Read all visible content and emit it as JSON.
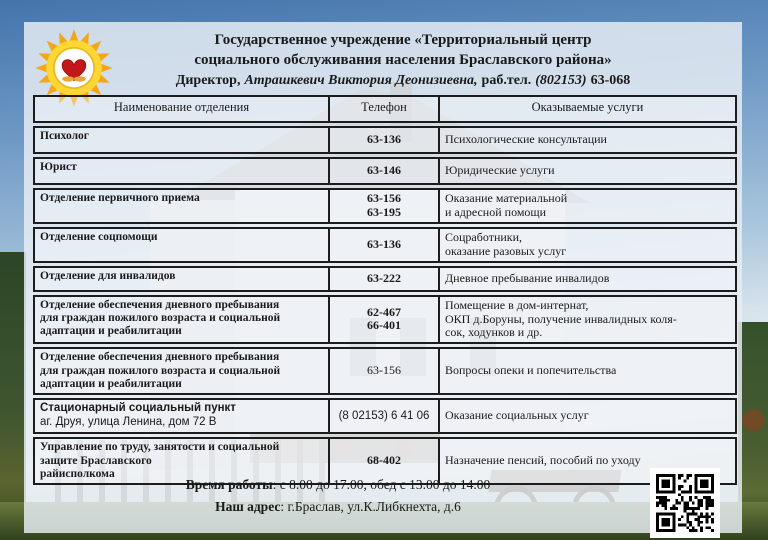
{
  "header": {
    "title_line1": "Государственное учреждение «Территориальный центр",
    "title_line2": "социального обслуживания населения Браславского района»",
    "director_label": "Директор,",
    "director_name": "Атрашкевич Виктория Деонизиевна,",
    "work_phone_label": "раб.тел.",
    "work_phone_code": "(802153)",
    "work_phone_number": "63-068",
    "logo_icon": "sun-heart-logo"
  },
  "table": {
    "columns": [
      "Наименование отделения",
      "Телефон",
      "Оказываемые услуги"
    ],
    "rows": [
      {
        "name_lines": [
          "Психолог"
        ],
        "name_sans": false,
        "phone_lines": [
          "63-136"
        ],
        "phone_bold": true,
        "service_lines": [
          "Психологические консультации"
        ]
      },
      {
        "name_lines": [
          "Юрист"
        ],
        "name_sans": false,
        "phone_lines": [
          "63-146"
        ],
        "phone_bold": true,
        "service_lines": [
          "Юридические услуги"
        ]
      },
      {
        "name_lines": [
          "Отделение первичного приема"
        ],
        "name_sans": false,
        "phone_lines": [
          "63-156",
          "63-195"
        ],
        "phone_bold": true,
        "service_lines": [
          "Оказание материальной",
          "и адресной помощи"
        ]
      },
      {
        "name_lines": [
          "Отделение соцпомощи"
        ],
        "name_sans": false,
        "phone_lines": [
          "63-136"
        ],
        "phone_bold": true,
        "service_lines": [
          "Соцработники,",
          "оказание разовых услуг"
        ]
      },
      {
        "name_lines": [
          "Отделение для инвалидов"
        ],
        "name_sans": false,
        "phone_lines": [
          "63-222"
        ],
        "phone_bold": true,
        "service_lines": [
          "Дневное пребывание инвалидов"
        ]
      },
      {
        "name_lines": [
          "Отделение обеспечения дневного пребывания",
          "для граждан пожилого возраста и социальной",
          "адаптации и реабилитации"
        ],
        "name_sans": false,
        "phone_lines": [
          "62-467",
          "66-401"
        ],
        "phone_bold": true,
        "service_lines": [
          "Помещение в дом-интернат,",
          "ОКП д.Боруны, получение инвалидных коля-",
          "сок, ходунков и др."
        ]
      },
      {
        "name_lines": [
          "Отделение обеспечения дневного пребывания",
          "для граждан пожилого возраста и социальной",
          "адаптации и реабилитации"
        ],
        "name_sans": false,
        "phone_lines": [
          "63-156"
        ],
        "phone_bold": false,
        "service_lines": [
          "Вопросы опеки и попечительства"
        ]
      },
      {
        "name_lines": [
          "Стационарный социальный пункт",
          "аг. Друя, улица Ленина, дом 72 В"
        ],
        "name_sans": true,
        "phone_lines": [
          "(8 02153) 6 41 06"
        ],
        "phone_bold": false,
        "service_lines": [
          "Оказание социальных услуг"
        ]
      },
      {
        "name_lines": [
          "Управление по труду, занятости и социальной",
          "защите Браславского",
          "райисполкома"
        ],
        "name_sans": false,
        "phone_lines": [
          "68-402"
        ],
        "phone_bold": true,
        "service_lines": [
          "Назначение пенсий, пособий по уходу"
        ]
      }
    ]
  },
  "footer": {
    "hours_label": "Время работы",
    "hours_value": ": с 8.00 до 17.00, обед с 13.00 до 14.00",
    "address_label": "Наш адрес",
    "address_value": ": г.Браслав, ул.К.Либкнехта, д.6",
    "qr_icon": "qr-code"
  },
  "colors": {
    "table_border": "#1c1c1c",
    "panel": "#e7edf3",
    "sky": "#4477ad",
    "sun_yellow": "#ffd633",
    "ray_orange": "#f2a71b",
    "heart_red": "#c41818",
    "text": "#1a1a1a"
  }
}
